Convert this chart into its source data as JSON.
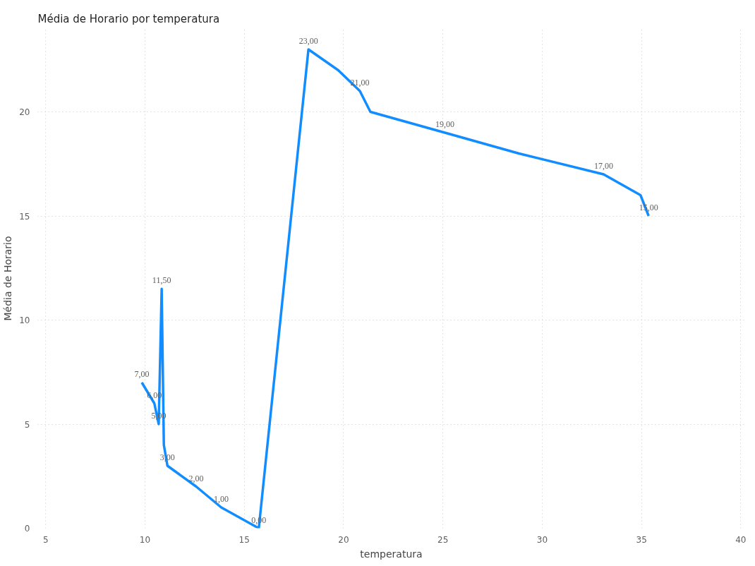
{
  "chart_data": {
    "type": "line",
    "title": "Média de Horario por temperatura",
    "xlabel": "temperatura",
    "ylabel": "Média de Horario",
    "x": [
      9.84,
      10.47,
      10.69,
      10.84,
      10.95,
      11.13,
      12.58,
      13.84,
      15.73,
      18.23,
      19.73,
      20.82,
      21.35,
      25.1,
      28.83,
      33.09,
      34.95,
      35.36
    ],
    "series": [
      {
        "color": "#118dff",
        "values": [
          7,
          6,
          5,
          11.5,
          4,
          3,
          2,
          1,
          0,
          23,
          22,
          21,
          20,
          19,
          18,
          17,
          16,
          15
        ],
        "value_labels": [
          "7,00",
          "6,00",
          "5,00",
          "11,50",
          null,
          "3,00",
          "2,00",
          "1,00",
          "0,00",
          "23,00",
          null,
          "21,00",
          null,
          "19,00",
          null,
          "17,00",
          null,
          "15,00"
        ]
      }
    ],
    "xlim": [
      4.6,
      40.2
    ],
    "ylim": [
      0,
      24
    ],
    "xticks": [
      5,
      10,
      15,
      20,
      25,
      30,
      35,
      40
    ],
    "yticks": [
      0,
      5,
      10,
      15,
      20
    ],
    "grid": true,
    "marker": "none",
    "line_style": "solid"
  }
}
